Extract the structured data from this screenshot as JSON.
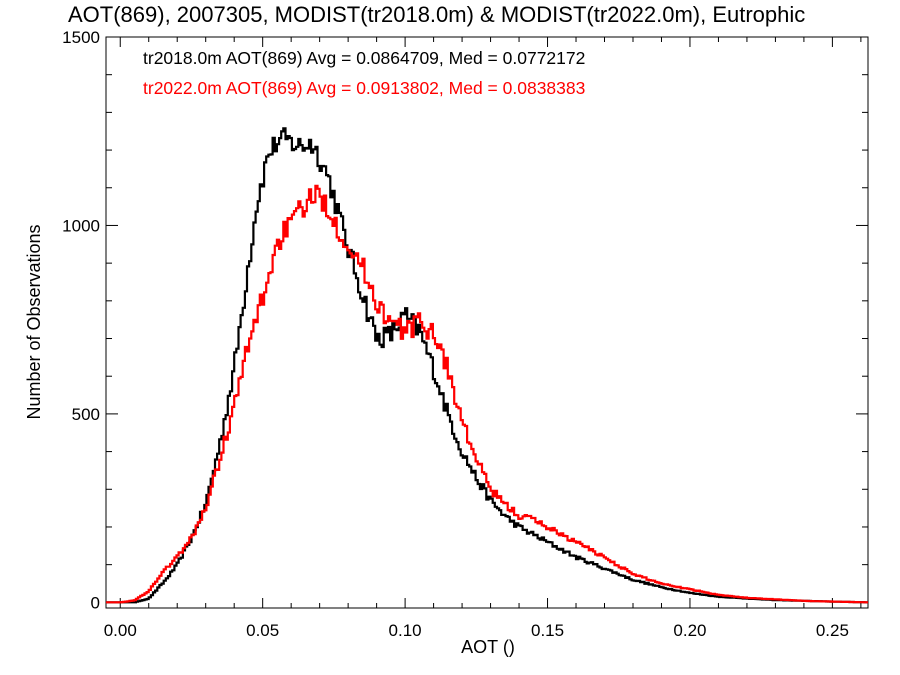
{
  "chart_data": {
    "type": "line",
    "title": "AOT(869), 2007305, MODIST(tr2018.0m) & MODIST(tr2022.0m), Eutrophic",
    "xlabel": "AOT ()",
    "ylabel": "Number of Observations",
    "xlim": [
      -0.005,
      0.2625
    ],
    "ylim": [
      -15,
      1500
    ],
    "xticks": [
      0.0,
      0.05,
      0.1,
      0.15,
      0.2,
      0.25
    ],
    "xtick_labels": [
      "0.00",
      "0.05",
      "0.10",
      "0.15",
      "0.20",
      "0.25"
    ],
    "yticks": [
      0,
      500,
      1000,
      1500
    ],
    "ytick_labels": [
      "0",
      "500",
      "1000",
      "1500"
    ],
    "grid": false,
    "legend_position": "top-left",
    "series": [
      {
        "name": "tr2018.0m AOT(869) Avg = 0.0864709, Med = 0.0772172",
        "color": "#000000",
        "x": [
          0.0,
          0.005,
          0.01,
          0.013,
          0.016,
          0.02,
          0.025,
          0.03,
          0.035,
          0.04,
          0.044,
          0.048,
          0.052,
          0.055,
          0.058,
          0.061,
          0.064,
          0.067,
          0.07,
          0.073,
          0.076,
          0.08,
          0.085,
          0.09,
          0.095,
          0.1,
          0.105,
          0.11,
          0.115,
          0.12,
          0.125,
          0.13,
          0.135,
          0.14,
          0.145,
          0.15,
          0.16,
          0.17,
          0.18,
          0.19,
          0.2,
          0.21,
          0.22,
          0.23,
          0.24,
          0.25,
          0.2625
        ],
        "y": [
          0,
          0,
          10,
          35,
          60,
          100,
          170,
          260,
          420,
          620,
          840,
          1060,
          1190,
          1220,
          1230,
          1215,
          1210,
          1220,
          1180,
          1130,
          1050,
          940,
          820,
          700,
          710,
          760,
          720,
          620,
          500,
          400,
          330,
          270,
          230,
          200,
          180,
          160,
          120,
          90,
          60,
          40,
          25,
          15,
          10,
          6,
          4,
          2,
          0
        ]
      },
      {
        "name": "tr2022.0m AOT(869) Avg = 0.0913802, Med = 0.0838383",
        "color": "#ff0000",
        "x": [
          0.0,
          0.005,
          0.01,
          0.013,
          0.016,
          0.02,
          0.025,
          0.03,
          0.035,
          0.04,
          0.044,
          0.048,
          0.052,
          0.055,
          0.058,
          0.061,
          0.064,
          0.067,
          0.07,
          0.073,
          0.076,
          0.08,
          0.085,
          0.09,
          0.095,
          0.1,
          0.105,
          0.11,
          0.115,
          0.12,
          0.125,
          0.13,
          0.135,
          0.14,
          0.145,
          0.15,
          0.16,
          0.17,
          0.18,
          0.19,
          0.2,
          0.21,
          0.22,
          0.23,
          0.24,
          0.25,
          0.2625
        ],
        "y": [
          0,
          5,
          30,
          60,
          90,
          120,
          170,
          250,
          380,
          520,
          650,
          760,
          860,
          950,
          990,
          1010,
          1050,
          1070,
          1080,
          1050,
          1000,
          950,
          890,
          800,
          740,
          720,
          740,
          720,
          620,
          480,
          380,
          300,
          260,
          230,
          220,
          200,
          160,
          120,
          75,
          50,
          35,
          20,
          12,
          8,
          4,
          2,
          0
        ]
      }
    ]
  }
}
